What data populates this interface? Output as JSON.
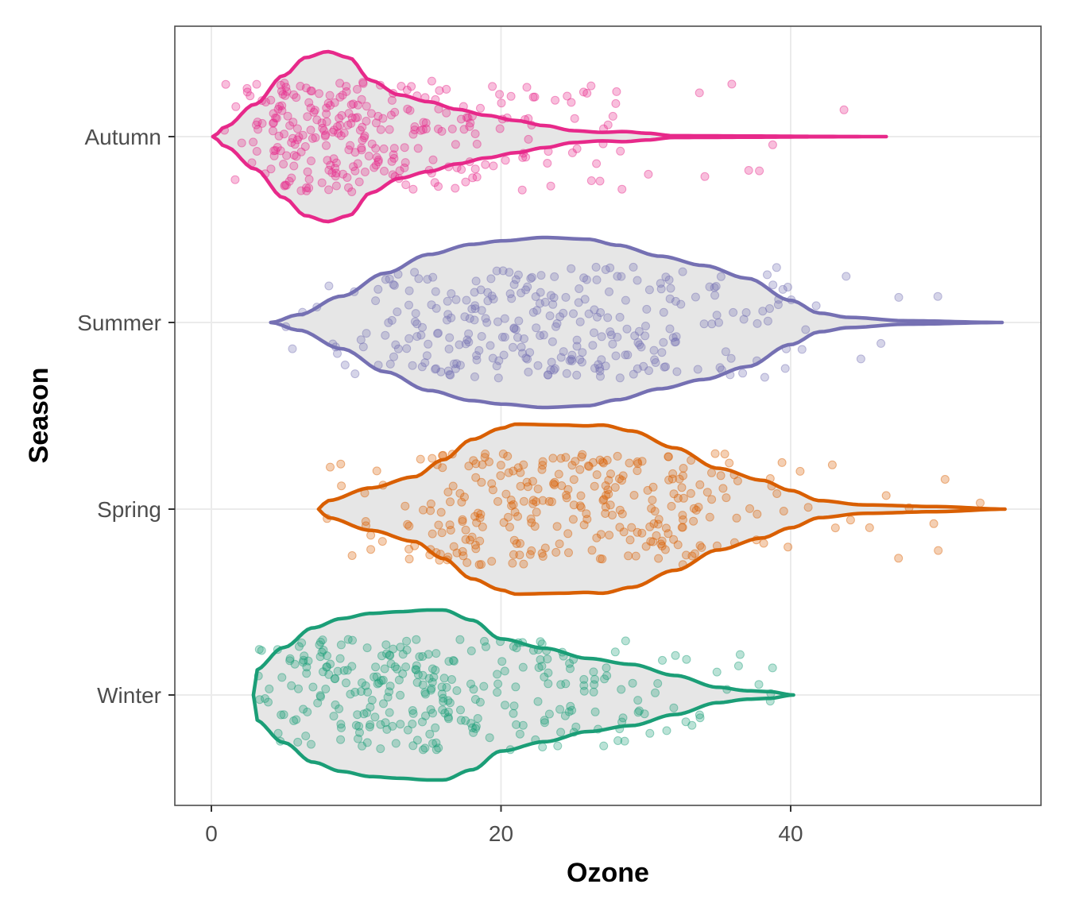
{
  "chart_data": {
    "type": "violin",
    "xlabel": "Ozone",
    "ylabel": "Season",
    "xlim": [
      -2.5,
      57.5
    ],
    "x_ticks": [
      0,
      20,
      40
    ],
    "grid": true,
    "legend": "none",
    "categories": [
      "Autumn",
      "Summer",
      "Spring",
      "Winter"
    ],
    "colors": {
      "Autumn": "#e7298a",
      "Summer": "#7570b3",
      "Spring": "#d95f02",
      "Winter": "#1b9e77"
    },
    "violin_fill": "#e6e6e6",
    "series": [
      {
        "name": "Autumn",
        "range": [
          0.1,
          46.6
        ],
        "density_profile": [
          [
            0.1,
            0.0
          ],
          [
            1,
            0.12
          ],
          [
            3,
            0.38
          ],
          [
            5,
            0.72
          ],
          [
            6.5,
            0.93
          ],
          [
            8,
            1.0
          ],
          [
            9.5,
            0.93
          ],
          [
            11,
            0.66
          ],
          [
            13,
            0.49
          ],
          [
            15,
            0.41
          ],
          [
            17,
            0.32
          ],
          [
            19,
            0.25
          ],
          [
            21,
            0.19
          ],
          [
            23,
            0.13
          ],
          [
            25,
            0.07
          ],
          [
            27,
            0.05
          ],
          [
            28.5,
            0.06
          ],
          [
            30,
            0.04
          ],
          [
            32,
            0.01
          ],
          [
            46.6,
            0.0
          ]
        ]
      },
      {
        "name": "Summer",
        "range": [
          4.1,
          54.6
        ],
        "density_profile": [
          [
            4.1,
            0.0
          ],
          [
            6,
            0.09
          ],
          [
            9,
            0.31
          ],
          [
            12,
            0.58
          ],
          [
            15,
            0.8
          ],
          [
            18,
            0.92
          ],
          [
            20,
            0.96
          ],
          [
            23,
            1.0
          ],
          [
            26,
            0.98
          ],
          [
            28,
            0.91
          ],
          [
            31,
            0.78
          ],
          [
            34,
            0.67
          ],
          [
            37,
            0.52
          ],
          [
            40,
            0.26
          ],
          [
            42,
            0.11
          ],
          [
            44,
            0.06
          ],
          [
            48,
            0.02
          ],
          [
            54.6,
            0.0
          ]
        ]
      },
      {
        "name": "Spring",
        "range": [
          7.4,
          54.8
        ],
        "density_profile": [
          [
            7.4,
            0.0
          ],
          [
            8,
            0.1
          ],
          [
            11,
            0.25
          ],
          [
            14,
            0.38
          ],
          [
            16,
            0.58
          ],
          [
            18,
            0.82
          ],
          [
            20,
            0.95
          ],
          [
            21,
            1.0
          ],
          [
            24,
            0.99
          ],
          [
            26,
            0.98
          ],
          [
            27,
            0.99
          ],
          [
            29,
            0.92
          ],
          [
            32,
            0.72
          ],
          [
            35,
            0.48
          ],
          [
            38,
            0.34
          ],
          [
            40,
            0.22
          ],
          [
            42,
            0.1
          ],
          [
            45,
            0.05
          ],
          [
            50,
            0.03
          ],
          [
            54.8,
            0.0
          ]
        ]
      },
      {
        "name": "Winter",
        "range": [
          2.9,
          40.2
        ],
        "density_profile": [
          [
            2.9,
            0.0
          ],
          [
            3,
            0.29
          ],
          [
            5,
            0.56
          ],
          [
            7,
            0.79
          ],
          [
            9,
            0.9
          ],
          [
            11,
            0.96
          ],
          [
            13,
            0.98
          ],
          [
            15,
            1.0
          ],
          [
            16,
            1.0
          ],
          [
            18,
            0.88
          ],
          [
            20,
            0.66
          ],
          [
            23,
            0.55
          ],
          [
            26,
            0.43
          ],
          [
            29,
            0.36
          ],
          [
            32,
            0.23
          ],
          [
            35,
            0.09
          ],
          [
            37,
            0.05
          ],
          [
            38.5,
            0.04
          ],
          [
            40.2,
            0.0
          ]
        ]
      }
    ],
    "points_per_season": 300,
    "point_alpha": 0.3
  }
}
